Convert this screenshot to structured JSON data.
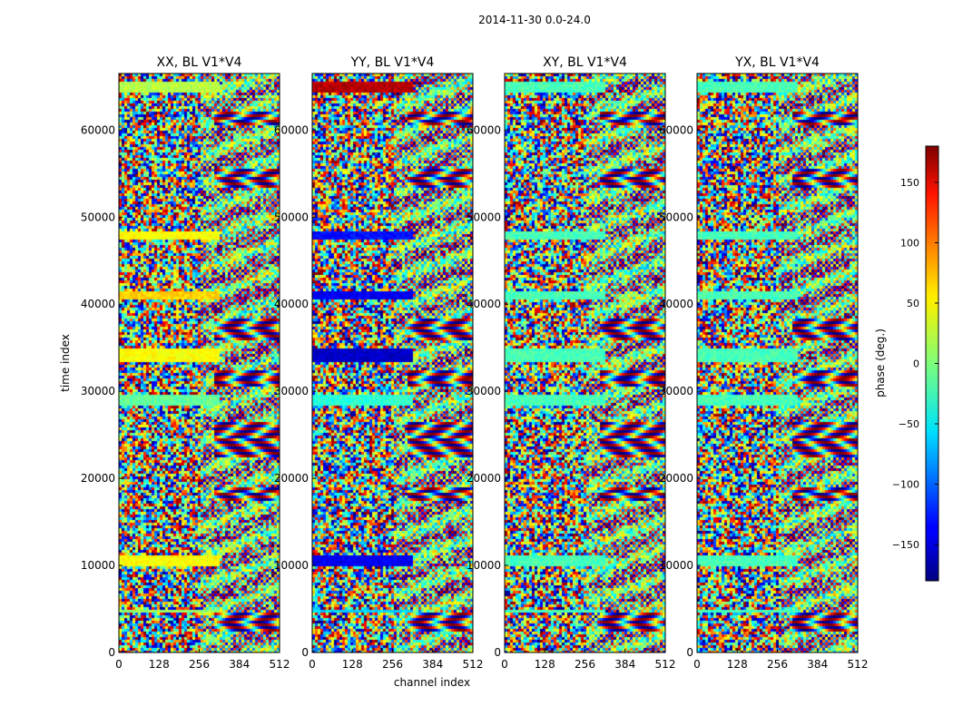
{
  "chart_data": {
    "type": "heatmap",
    "suptitle": "2014-11-30 0.0-24.0",
    "xlabel": "channel index",
    "ylabel": "time index",
    "xlim": [
      0,
      512
    ],
    "ylim": [
      0,
      66500
    ],
    "xticks": [
      0,
      128,
      256,
      384,
      512
    ],
    "yticks": [
      0,
      10000,
      20000,
      30000,
      40000,
      50000,
      60000
    ],
    "panels": [
      {
        "title": "XX, BL V1*V4",
        "baseline": "V1*V4",
        "polarization": "XX"
      },
      {
        "title": "YY, BL V1*V4",
        "baseline": "V1*V4",
        "polarization": "YY"
      },
      {
        "title": "XY, BL V1*V4",
        "baseline": "V1*V4",
        "polarization": "XY"
      },
      {
        "title": "YX, BL V1*V4",
        "baseline": "V1*V4",
        "polarization": "YX"
      }
    ],
    "colorbar": {
      "label": "phase (deg.)",
      "colormap": "jet",
      "range": [
        -180,
        180
      ],
      "ticks": [
        -150,
        -100,
        -50,
        0,
        50,
        100,
        150
      ],
      "tick_labels": [
        "−150",
        "−100",
        "−50",
        "0",
        "50",
        "100",
        "150"
      ]
    },
    "uniform_bands": [
      {
        "t_start": 64200,
        "t_end": 65500,
        "phase": {
          "XX": 20,
          "YY": 160,
          "XY": -20,
          "YX": -20
        }
      },
      {
        "t_start": 47500,
        "t_end": 48500,
        "phase": {
          "XX": 45,
          "YY": -130,
          "XY": -20,
          "YX": -20
        }
      },
      {
        "t_start": 40500,
        "t_end": 41500,
        "phase": {
          "XX": 60,
          "YY": -140,
          "XY": -20,
          "YX": -20
        }
      },
      {
        "t_start": 33500,
        "t_end": 35000,
        "phase": {
          "XX": 45,
          "YY": -155,
          "XY": -20,
          "YX": -20
        }
      },
      {
        "t_start": 28500,
        "t_end": 29500,
        "phase": {
          "XX": -10,
          "YY": -30,
          "XY": -20,
          "YX": -20
        }
      },
      {
        "t_start": 10000,
        "t_end": 11000,
        "phase": {
          "XX": 45,
          "YY": -140,
          "XY": -20,
          "YX": -20
        }
      },
      {
        "t_start": 4500,
        "t_end": 5000,
        "phase": {
          "XX": 10,
          "YY": -60,
          "XY": -20,
          "YX": -20
        }
      }
    ],
    "fringe_regions": [
      {
        "t_start": 2500,
        "t_end": 4500
      },
      {
        "t_start": 17500,
        "t_end": 19000
      },
      {
        "t_start": 22500,
        "t_end": 26500
      },
      {
        "t_start": 30500,
        "t_end": 32500
      },
      {
        "t_start": 36000,
        "t_end": 38500
      },
      {
        "t_start": 53500,
        "t_end": 55500
      },
      {
        "t_start": 60500,
        "t_end": 62000
      }
    ]
  }
}
